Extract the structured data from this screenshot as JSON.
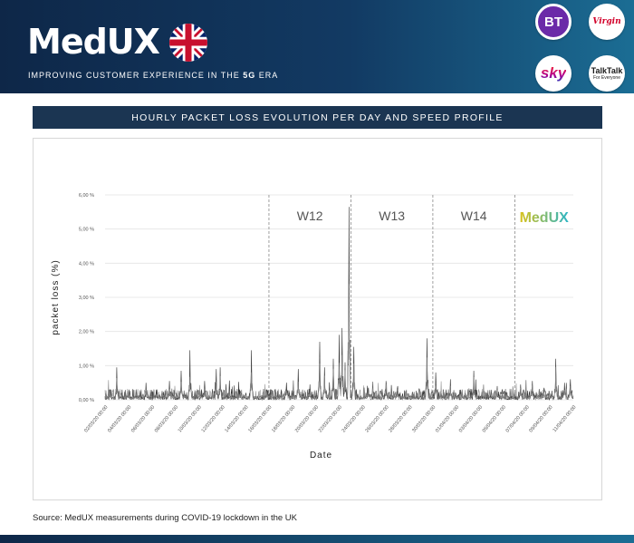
{
  "header": {
    "brand_logo": "MedUX",
    "tagline_before": "IMPROVING CUSTOMER EXPERIENCE IN THE ",
    "tagline_em": "5G",
    "tagline_after": " ERA",
    "flag_icon": "uk-flag-icon",
    "operators": [
      {
        "name": "BT",
        "color": "#6b2aa8"
      },
      {
        "name": "Virgin",
        "color": "#d2002a"
      },
      {
        "name": "sky",
        "color": "#b1008f"
      },
      {
        "name": "TalkTalk",
        "subtitle": "For Everyone",
        "color": "#1a1a1a"
      }
    ]
  },
  "title_bar": "HOURLY PACKET LOSS EVOLUTION PER DAY AND SPEED PROFILE",
  "source": "Source: MedUX measurements during COVID-19 lockdown in the UK",
  "chart_data": {
    "type": "line",
    "ylabel": "packet loss (%)",
    "xlabel": "Date",
    "ylim": [
      0,
      6
    ],
    "yticks": [
      "0,00 %",
      "1,00 %",
      "2,00 %",
      "3,00 %",
      "4,00 %",
      "5,00 %",
      "6,00 %"
    ],
    "xticks": [
      "02/03/20 00:00",
      "04/03/20 00:00",
      "06/03/20 00:00",
      "08/03/20 00:00",
      "10/03/20 00:00",
      "12/03/20 00:00",
      "14/03/20 00:00",
      "16/03/20 00:00",
      "18/03/20 00:00",
      "20/03/20 00:00",
      "22/03/20 00:00",
      "24/03/20 00:00",
      "26/03/20 00:00",
      "28/03/20 00:00",
      "30/03/20 00:00",
      "01/04/20 00:00",
      "03/04/20 00:00",
      "05/04/20 00:00",
      "07/04/20 00:00",
      "09/04/20 00:00",
      "11/04/20 00:00"
    ],
    "x_start": "02/03/20 00:00",
    "x_end": "11/04/20 00:00",
    "week_markers": [
      {
        "label": "W12",
        "date": "16/03/20 00:00"
      },
      {
        "label": "W13",
        "date": "23/03/20 00:00"
      },
      {
        "label": "W14",
        "date": "30/03/20 00:00"
      },
      {
        "label": "",
        "date": "06/04/20 00:00"
      }
    ],
    "watermark": "MedUX",
    "series_colors": [
      "#1a1a1a",
      "#4a4a4a",
      "#8a8a8a"
    ],
    "peaks": [
      {
        "date": "03/03/20 00:00",
        "value": 0.95
      },
      {
        "date": "05/03/20 12:00",
        "value": 0.5
      },
      {
        "date": "07/03/20 12:00",
        "value": 0.55
      },
      {
        "date": "08/03/20 12:00",
        "value": 0.85
      },
      {
        "date": "09/03/20 06:00",
        "value": 1.45
      },
      {
        "date": "10/03/20 12:00",
        "value": 0.55
      },
      {
        "date": "11/03/20 12:00",
        "value": 0.9
      },
      {
        "date": "11/03/20 20:00",
        "value": 0.95
      },
      {
        "date": "13/03/20 12:00",
        "value": 0.3
      },
      {
        "date": "14/03/20 12:00",
        "value": 1.45
      },
      {
        "date": "17/03/20 12:00",
        "value": 0.5
      },
      {
        "date": "18/03/20 12:00",
        "value": 0.9
      },
      {
        "date": "19/03/20 12:00",
        "value": 0.45
      },
      {
        "date": "20/03/20 08:00",
        "value": 1.7
      },
      {
        "date": "20/03/20 18:00",
        "value": 0.95
      },
      {
        "date": "21/03/20 12:00",
        "value": 1.2
      },
      {
        "date": "22/03/20 00:00",
        "value": 1.9
      },
      {
        "date": "22/03/20 06:00",
        "value": 2.1
      },
      {
        "date": "22/03/20 12:00",
        "value": 1.1
      },
      {
        "date": "22/03/20 20:00",
        "value": 5.65
      },
      {
        "date": "23/03/20 06:00",
        "value": 1.55
      },
      {
        "date": "24/03/20 12:00",
        "value": 0.35
      },
      {
        "date": "26/03/20 00:00",
        "value": 0.55
      },
      {
        "date": "27/03/20 00:00",
        "value": 0.4
      },
      {
        "date": "29/03/20 12:00",
        "value": 1.8
      },
      {
        "date": "30/03/20 06:00",
        "value": 0.8
      },
      {
        "date": "31/03/20 12:00",
        "value": 0.6
      },
      {
        "date": "02/04/20 12:00",
        "value": 0.85
      },
      {
        "date": "04/04/20 12:00",
        "value": 0.4
      },
      {
        "date": "06/04/20 12:00",
        "value": 0.45
      },
      {
        "date": "07/04/20 12:00",
        "value": 0.55
      },
      {
        "date": "08/04/20 12:00",
        "value": 0.35
      },
      {
        "date": "09/04/20 12:00",
        "value": 1.2
      },
      {
        "date": "10/04/20 06:00",
        "value": 0.5
      },
      {
        "date": "10/04/20 18:00",
        "value": 0.6
      }
    ]
  }
}
